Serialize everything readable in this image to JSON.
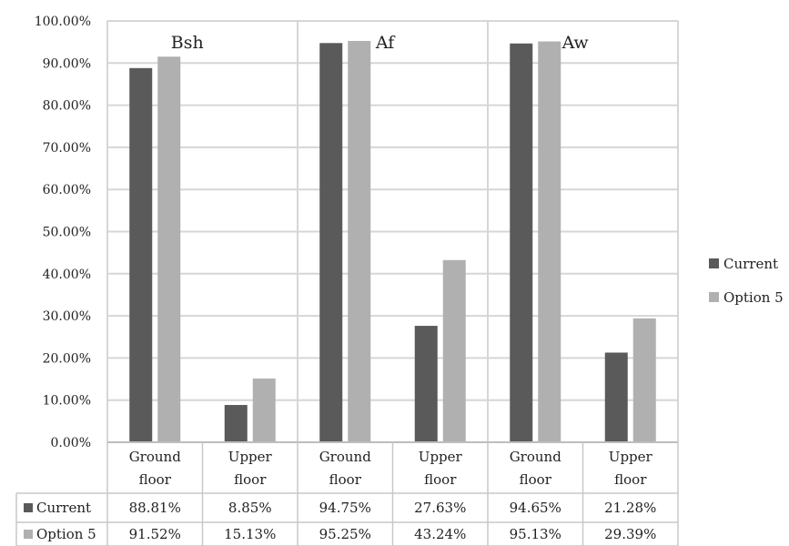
{
  "chart_data": {
    "type": "bar",
    "ylim": [
      0,
      100
    ],
    "yticks": [
      "0.00%",
      "10.00%",
      "20.00%",
      "30.00%",
      "40.00%",
      "50.00%",
      "60.00%",
      "70.00%",
      "80.00%",
      "90.00%",
      "100.00%"
    ],
    "groups": [
      "Bsh",
      "Af",
      "Aw"
    ],
    "categories": [
      [
        "Ground",
        "floor"
      ],
      [
        "Upper",
        "floor"
      ],
      [
        "Ground",
        "floor"
      ],
      [
        "Upper",
        "floor"
      ],
      [
        "Ground",
        "floor"
      ],
      [
        "Upper",
        "floor"
      ]
    ],
    "series": [
      {
        "name": "Current",
        "color": "#5a5a5a",
        "values": [
          88.81,
          8.85,
          94.75,
          27.63,
          94.65,
          21.28
        ],
        "labels": [
          "88.81%",
          "8.85%",
          "94.75%",
          "27.63%",
          "94.65%",
          "21.28%"
        ]
      },
      {
        "name": "Option 5",
        "color": "#b0b0b0",
        "values": [
          91.52,
          15.13,
          95.25,
          43.24,
          95.13,
          29.39
        ],
        "labels": [
          "91.52%",
          "15.13%",
          "95.25%",
          "43.24%",
          "95.13%",
          "29.39%"
        ]
      }
    ],
    "legend": {
      "position": "right"
    },
    "grid": true,
    "data_table": true
  }
}
